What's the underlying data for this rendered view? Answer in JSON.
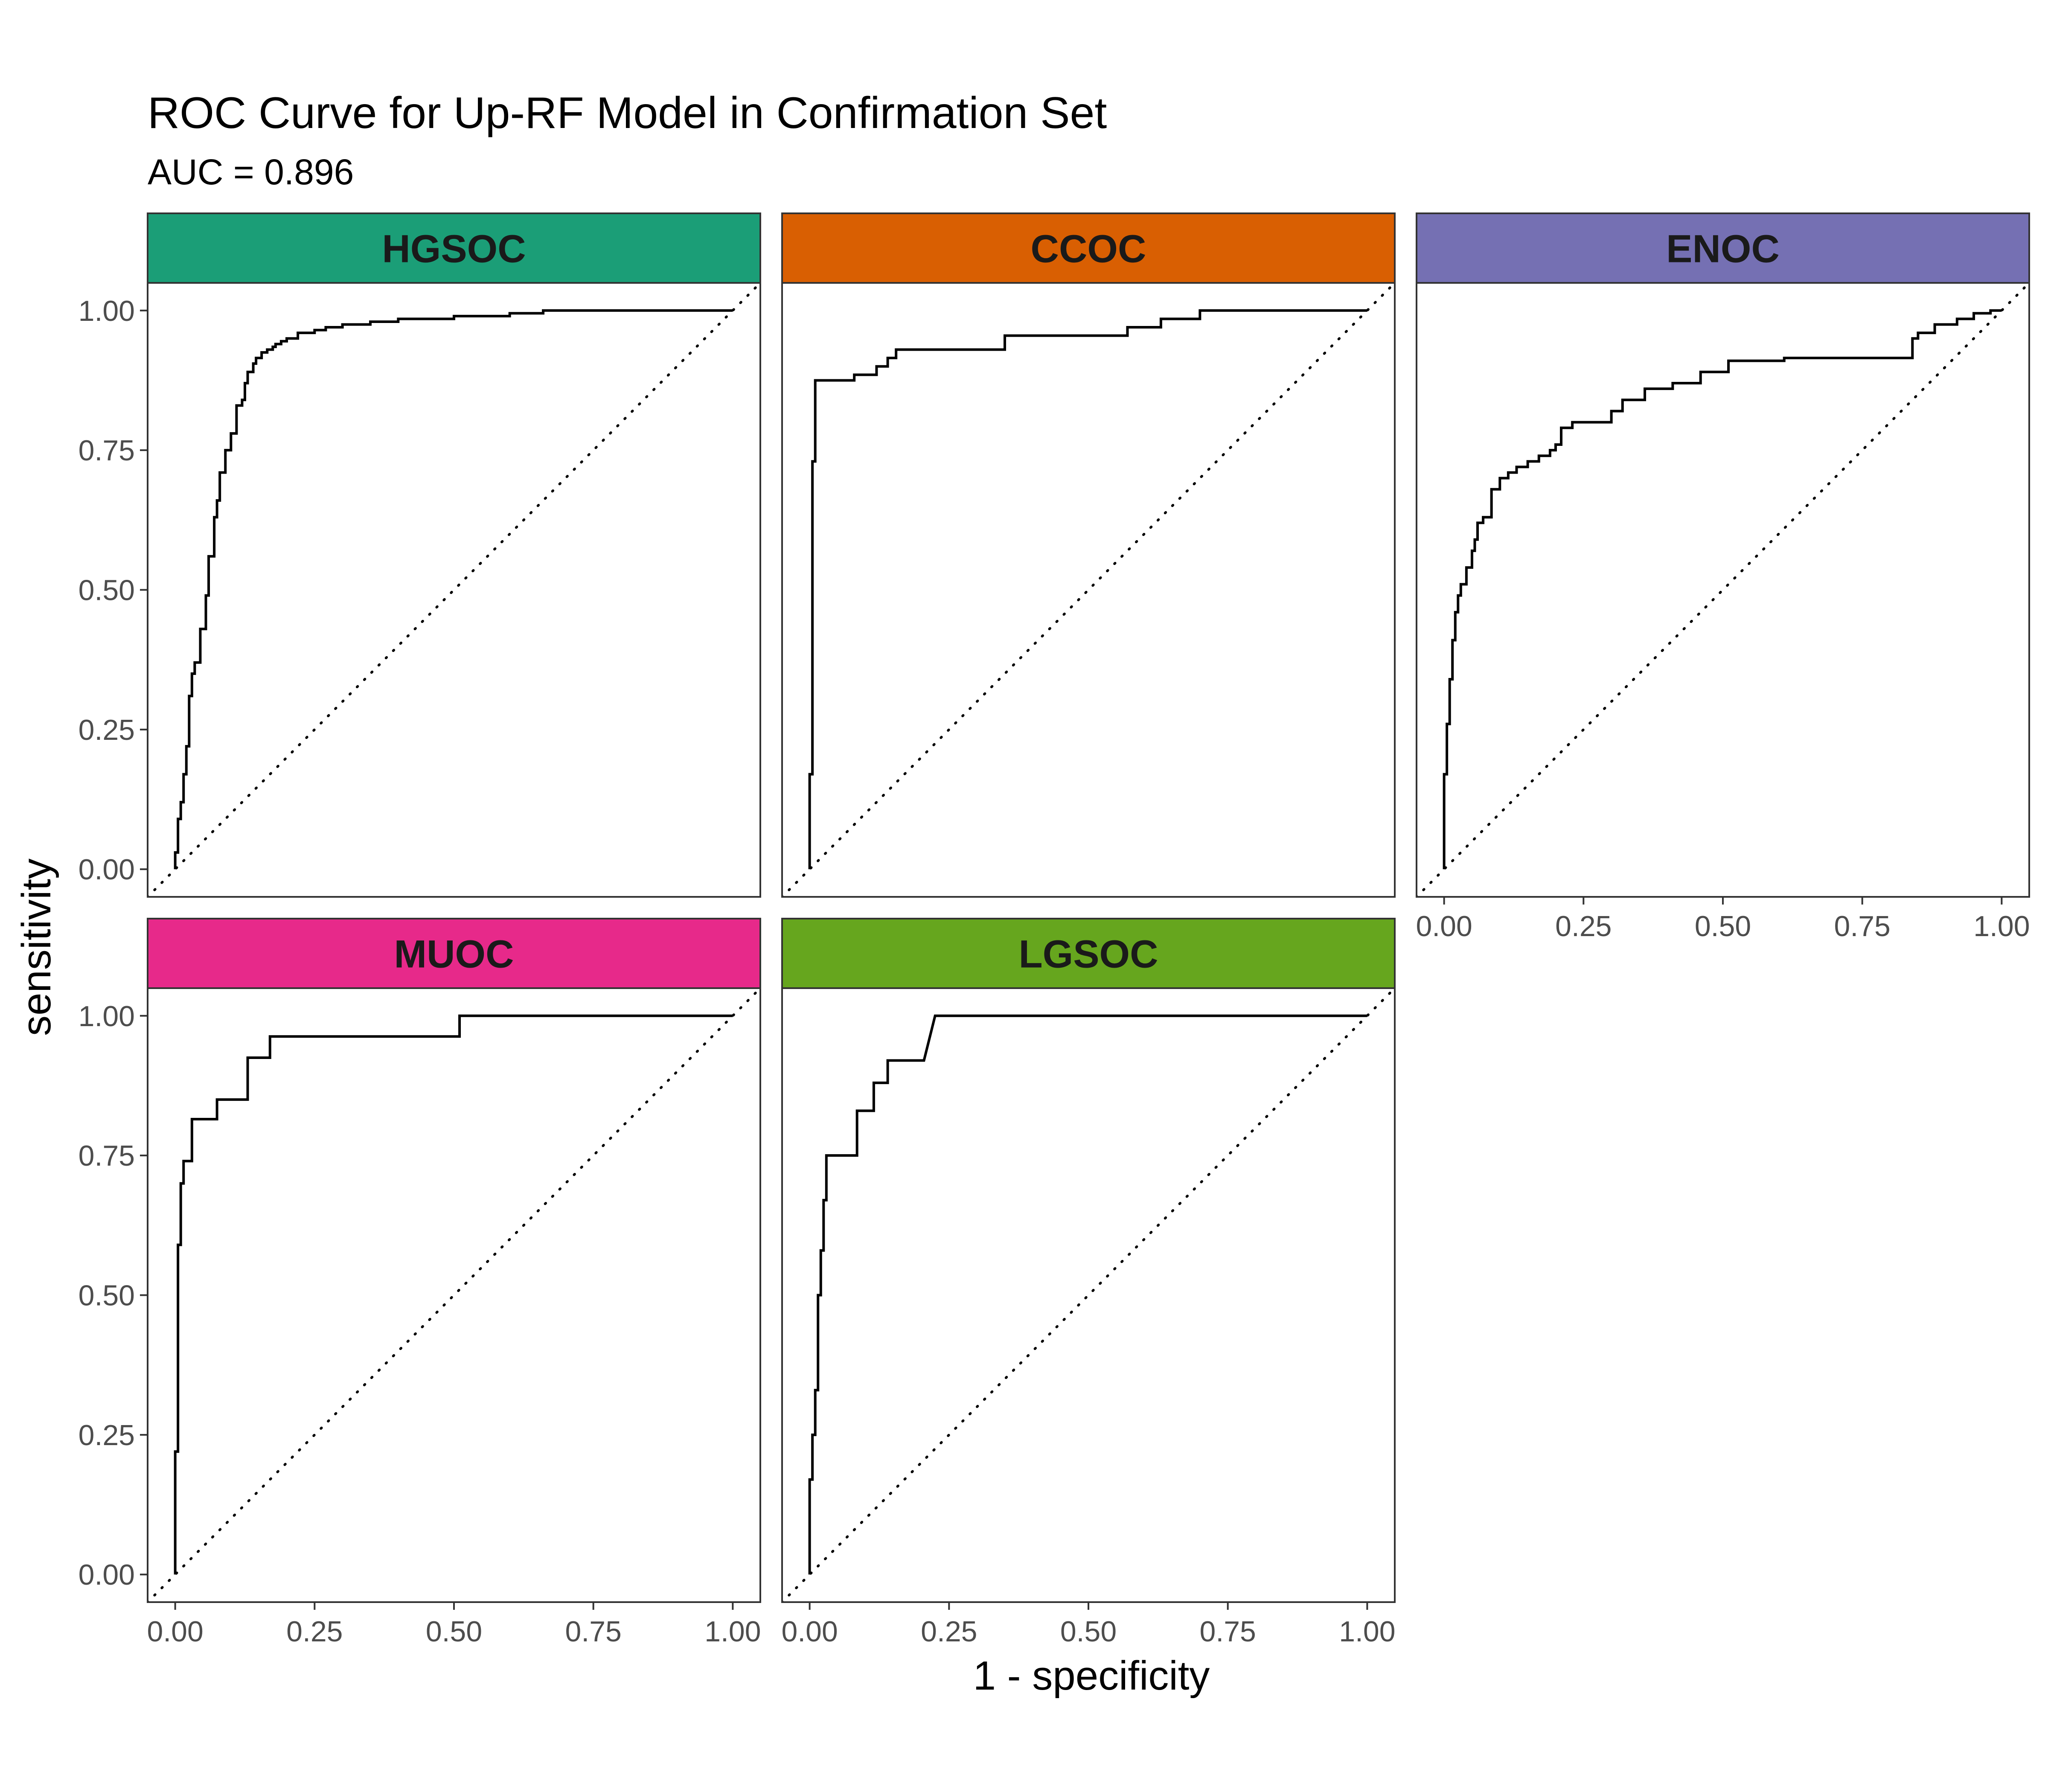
{
  "title": "ROC Curve for Up-RF Model in Confirmation Set",
  "subtitle": "AUC = 0.896",
  "xlabel": "1 - specificity",
  "ylabel": "sensitivity",
  "x_ticks": [
    "0.00",
    "0.25",
    "0.50",
    "0.75",
    "1.00"
  ],
  "y_ticks": [
    "0.00",
    "0.25",
    "0.50",
    "0.75",
    "1.00"
  ],
  "chart_data": {
    "type": "line",
    "title": "ROC Curve for Up-RF Model in Confirmation Set",
    "subtitle": "AUC = 0.896",
    "xlabel": "1 - specificity",
    "ylabel": "sensitivity",
    "xlim": [
      0,
      1
    ],
    "ylim": [
      0,
      1
    ],
    "grid": false,
    "reference_line": {
      "style": "dotted",
      "x": [
        0,
        1
      ],
      "y": [
        0,
        1
      ]
    },
    "facets": [
      {
        "name": "HGSOC",
        "strip_color": "#1B9E77",
        "x": [
          0,
          0,
          0.005,
          0.005,
          0.01,
          0.01,
          0.015,
          0.015,
          0.02,
          0.02,
          0.025,
          0.025,
          0.03,
          0.03,
          0.035,
          0.035,
          0.045,
          0.045,
          0.055,
          0.055,
          0.06,
          0.06,
          0.07,
          0.07,
          0.075,
          0.075,
          0.08,
          0.08,
          0.09,
          0.09,
          0.1,
          0.1,
          0.11,
          0.11,
          0.12,
          0.12,
          0.125,
          0.125,
          0.13,
          0.13,
          0.14,
          0.14,
          0.145,
          0.145,
          0.155,
          0.155,
          0.165,
          0.165,
          0.175,
          0.175,
          0.18,
          0.18,
          0.19,
          0.19,
          0.2,
          0.2,
          0.22,
          0.22,
          0.25,
          0.25,
          0.27,
          0.27,
          0.3,
          0.3,
          0.35,
          0.35,
          0.4,
          0.4,
          0.5,
          0.5,
          0.6,
          0.6,
          0.66,
          0.66,
          0.83,
          0.83,
          0.95,
          0.95,
          1.0
        ],
        "y": [
          0,
          0.03,
          0.03,
          0.09,
          0.09,
          0.12,
          0.12,
          0.17,
          0.17,
          0.22,
          0.22,
          0.31,
          0.31,
          0.35,
          0.35,
          0.37,
          0.37,
          0.43,
          0.43,
          0.49,
          0.49,
          0.56,
          0.56,
          0.63,
          0.63,
          0.66,
          0.66,
          0.71,
          0.71,
          0.75,
          0.75,
          0.78,
          0.78,
          0.83,
          0.83,
          0.84,
          0.84,
          0.87,
          0.87,
          0.89,
          0.89,
          0.905,
          0.905,
          0.915,
          0.915,
          0.925,
          0.925,
          0.93,
          0.93,
          0.935,
          0.935,
          0.94,
          0.94,
          0.945,
          0.945,
          0.95,
          0.95,
          0.96,
          0.96,
          0.965,
          0.965,
          0.97,
          0.97,
          0.975,
          0.975,
          0.98,
          0.98,
          0.985,
          0.985,
          0.99,
          0.99,
          0.995,
          0.995,
          1.0,
          1.0,
          1.0,
          1.0,
          1.0,
          1.0
        ]
      },
      {
        "name": "CCOC",
        "strip_color": "#D95F02",
        "x": [
          0,
          0,
          0.005,
          0.005,
          0.01,
          0.01,
          0.08,
          0.08,
          0.12,
          0.12,
          0.14,
          0.14,
          0.155,
          0.155,
          0.35,
          0.35,
          0.57,
          0.57,
          0.63,
          0.63,
          0.7,
          0.7,
          1.0
        ],
        "y": [
          0,
          0.17,
          0.17,
          0.73,
          0.73,
          0.875,
          0.875,
          0.885,
          0.885,
          0.9,
          0.9,
          0.915,
          0.915,
          0.93,
          0.93,
          0.955,
          0.955,
          0.97,
          0.97,
          0.985,
          0.985,
          1.0,
          1.0
        ]
      },
      {
        "name": "ENOC",
        "strip_color": "#7570B3",
        "x": [
          0,
          0,
          0.005,
          0.005,
          0.01,
          0.01,
          0.015,
          0.015,
          0.02,
          0.02,
          0.025,
          0.025,
          0.03,
          0.03,
          0.04,
          0.04,
          0.05,
          0.05,
          0.055,
          0.055,
          0.06,
          0.06,
          0.07,
          0.07,
          0.085,
          0.085,
          0.1,
          0.1,
          0.115,
          0.115,
          0.13,
          0.13,
          0.15,
          0.15,
          0.17,
          0.17,
          0.19,
          0.19,
          0.2,
          0.2,
          0.21,
          0.21,
          0.23,
          0.23,
          0.3,
          0.3,
          0.32,
          0.32,
          0.36,
          0.36,
          0.41,
          0.41,
          0.46,
          0.46,
          0.51,
          0.51,
          0.61,
          0.61,
          0.84,
          0.84,
          0.85,
          0.85,
          0.88,
          0.88,
          0.92,
          0.92,
          0.95,
          0.95,
          0.98,
          0.98,
          1.0
        ],
        "y": [
          0,
          0.17,
          0.17,
          0.26,
          0.26,
          0.34,
          0.34,
          0.41,
          0.41,
          0.46,
          0.46,
          0.49,
          0.49,
          0.51,
          0.51,
          0.54,
          0.54,
          0.57,
          0.57,
          0.59,
          0.59,
          0.62,
          0.62,
          0.63,
          0.63,
          0.68,
          0.68,
          0.7,
          0.7,
          0.71,
          0.71,
          0.72,
          0.72,
          0.73,
          0.73,
          0.74,
          0.74,
          0.75,
          0.75,
          0.76,
          0.76,
          0.79,
          0.79,
          0.8,
          0.8,
          0.82,
          0.82,
          0.84,
          0.84,
          0.86,
          0.86,
          0.87,
          0.87,
          0.89,
          0.89,
          0.91,
          0.91,
          0.915,
          0.915,
          0.95,
          0.95,
          0.96,
          0.96,
          0.975,
          0.975,
          0.985,
          0.985,
          0.995,
          0.995,
          1.0,
          1.0
        ]
      },
      {
        "name": "MUOC",
        "strip_color": "#E7298A",
        "x": [
          0,
          0,
          0.005,
          0.005,
          0.01,
          0.01,
          0.015,
          0.015,
          0.03,
          0.03,
          0.075,
          0.075,
          0.13,
          0.13,
          0.17,
          0.17,
          0.51,
          0.51,
          1.0
        ],
        "y": [
          0,
          0.22,
          0.22,
          0.59,
          0.59,
          0.7,
          0.7,
          0.74,
          0.74,
          0.815,
          0.815,
          0.85,
          0.85,
          0.925,
          0.925,
          0.963,
          0.963,
          1.0,
          1.0
        ]
      },
      {
        "name": "LGSOC",
        "strip_color": "#66A61E",
        "x": [
          0,
          0,
          0.005,
          0.005,
          0.01,
          0.01,
          0.015,
          0.015,
          0.02,
          0.02,
          0.025,
          0.025,
          0.03,
          0.03,
          0.04,
          0.04,
          0.05,
          0.05,
          0.085,
          0.085,
          0.115,
          0.115,
          0.14,
          0.14,
          0.205,
          0.225,
          1.0
        ],
        "y": [
          0,
          0.17,
          0.17,
          0.25,
          0.25,
          0.33,
          0.33,
          0.5,
          0.5,
          0.58,
          0.58,
          0.67,
          0.67,
          0.75,
          0.75,
          0.75,
          0.75,
          0.75,
          0.75,
          0.83,
          0.83,
          0.88,
          0.88,
          0.92,
          0.92,
          1.0,
          1.0
        ]
      }
    ]
  }
}
